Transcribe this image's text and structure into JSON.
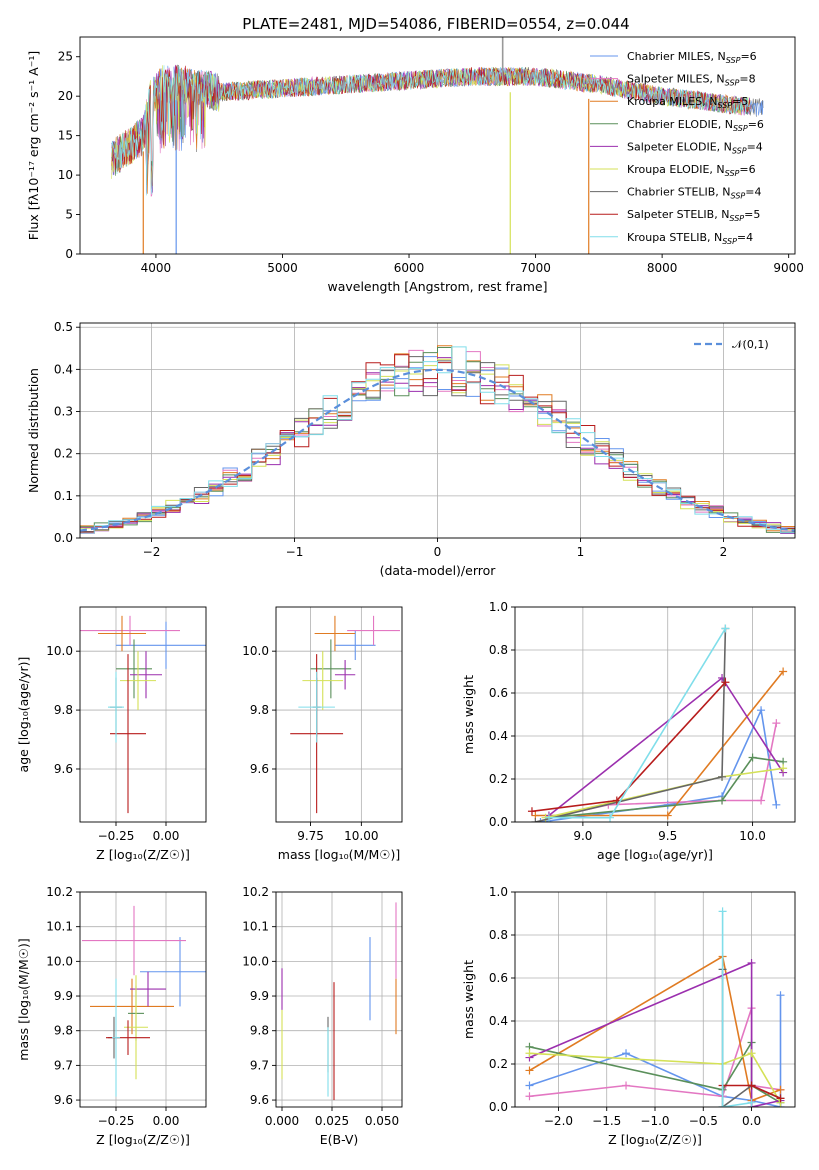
{
  "figure_title": "PLATE=2481, MJD=54086, FIBERID=0554, z=0.044",
  "model_names": [
    "Chabrier MILES",
    "Salpeter MILES",
    "Kroupa MILES",
    "Chabrier ELODIE",
    "Salpeter ELODIE",
    "Kroupa ELODIE",
    "Chabrier STELIB",
    "Salpeter STELIB",
    "Kroupa STELIB"
  ],
  "legend_nssp": [
    6,
    8,
    5,
    6,
    4,
    6,
    4,
    5,
    4
  ],
  "series_colors": [
    "#6495ed",
    "#e377c2",
    "#e07b22",
    "#5a8f5a",
    "#9b2fae",
    "#d4e157",
    "#666666",
    "#b71c1c",
    "#80deea"
  ],
  "chart_data": [
    {
      "id": "spectrum",
      "type": "line",
      "title": "",
      "xlabel": "wavelength [Angstrom, rest frame]",
      "ylabel": "Flux [fλ10⁻¹⁷ erg cm⁻² s⁻¹ A⁻¹]",
      "xlim": [
        3400,
        9050
      ],
      "ylim": [
        0,
        27.5
      ],
      "xticks": [
        4000,
        5000,
        6000,
        7000,
        8000,
        9000
      ],
      "yticks": [
        0,
        5,
        10,
        15,
        20,
        25
      ],
      "legend_position": "top-right",
      "continuum_x": [
        3650,
        3900,
        3950,
        4050,
        4200,
        4500,
        5000,
        5500,
        6000,
        6500,
        7000,
        7500,
        8000,
        8500,
        8800
      ],
      "continuum_y": [
        12,
        15,
        19.5,
        21.5,
        21.5,
        20.5,
        21,
        21.5,
        22,
        22.5,
        22.5,
        21.5,
        20,
        19,
        18.5
      ],
      "series_ranges": [
        [
          3650,
          8800
        ],
        [
          3650,
          8700
        ],
        [
          3650,
          8700
        ],
        [
          3650,
          8700
        ],
        [
          3650,
          8700
        ],
        [
          3650,
          8700
        ],
        [
          3650,
          8800
        ],
        [
          3650,
          8700
        ],
        [
          3650,
          8700
        ]
      ],
      "dips": [
        {
          "x": 3900,
          "y": 0,
          "series": "Kroupa MILES"
        },
        {
          "x": 4160,
          "y": 0,
          "series": "Chabrier MILES"
        },
        {
          "x": 6800,
          "y": 0,
          "series": "Kroupa ELODIE"
        },
        {
          "x": 7420,
          "y": 0,
          "series": "Kroupa MILES"
        }
      ],
      "spikes": [
        {
          "x": 6740,
          "y": 27.5
        }
      ]
    },
    {
      "id": "residual_hist",
      "type": "line",
      "title": "",
      "xlabel": "(data-model)/error",
      "ylabel": "Normed distribution",
      "xlim": [
        -2.5,
        2.5
      ],
      "ylim": [
        0,
        0.51
      ],
      "xticks": [
        -2,
        -1,
        0,
        1,
        2
      ],
      "yticks": [
        0.0,
        0.1,
        0.2,
        0.3,
        0.4,
        0.5
      ],
      "bin_width": 0.1,
      "legend": [
        "𝒩(0,1)"
      ],
      "legend_position": "top-right",
      "reference_curve": "normal(0,1)"
    },
    {
      "id": "age_vs_Z",
      "type": "scatter",
      "title": "",
      "xlabel": "Z [log₁₀(Z/Z☉)]",
      "ylabel": "age  [log₁₀(age/yr)]",
      "xlim": [
        -0.43,
        0.2
      ],
      "ylim": [
        9.42,
        10.15
      ],
      "xticks": [
        -0.25,
        0.0
      ],
      "yticks": [
        9.6,
        9.8,
        10.0
      ],
      "points": [
        {
          "series": "Chabrier MILES",
          "x": 0.0,
          "y": 10.02,
          "xerr": 0.25,
          "yerr": 0.08
        },
        {
          "series": "Salpeter MILES",
          "x": -0.18,
          "y": 10.07,
          "xerr": 0.25,
          "yerr": 0.05
        },
        {
          "series": "Kroupa MILES",
          "x": -0.22,
          "y": 10.06,
          "xerr": 0.12,
          "yerr": 0.06
        },
        {
          "series": "Chabrier ELODIE",
          "x": -0.16,
          "y": 9.94,
          "xerr": 0.09,
          "yerr": 0.1
        },
        {
          "series": "Salpeter ELODIE",
          "x": -0.1,
          "y": 9.92,
          "xerr": 0.08,
          "yerr": 0.08
        },
        {
          "series": "Kroupa ELODIE",
          "x": -0.14,
          "y": 9.9,
          "xerr": 0.09,
          "yerr": 0.1
        },
        {
          "series": "Chabrier STELIB",
          "x": -0.25,
          "y": 9.81,
          "xerr": 0.03,
          "yerr": 0.1
        },
        {
          "series": "Salpeter STELIB",
          "x": -0.19,
          "y": 9.72,
          "xerr": 0.09,
          "yerr": 0.27
        },
        {
          "series": "Kroupa STELIB",
          "x": -0.25,
          "y": 9.81,
          "xerr": 0.04,
          "yerr": 0.12
        }
      ]
    },
    {
      "id": "age_vs_mass",
      "type": "scatter",
      "title": "",
      "xlabel": "mass [log₁₀(M/M☉)]",
      "ylabel": "",
      "xlim": [
        9.58,
        10.2
      ],
      "ylim": [
        9.42,
        10.15
      ],
      "xticks": [
        9.75,
        10.0
      ],
      "yticks": [
        9.6,
        9.8,
        10.0
      ],
      "points": [
        {
          "series": "Chabrier MILES",
          "x": 9.97,
          "y": 10.02,
          "xerr": 0.1,
          "yerr": 0.05
        },
        {
          "series": "Salpeter MILES",
          "x": 10.06,
          "y": 10.07,
          "xerr": 0.13,
          "yerr": 0.05
        },
        {
          "series": "Kroupa MILES",
          "x": 9.87,
          "y": 10.06,
          "xerr": 0.1,
          "yerr": 0.06
        },
        {
          "series": "Chabrier ELODIE",
          "x": 9.85,
          "y": 9.94,
          "xerr": 0.1,
          "yerr": 0.1
        },
        {
          "series": "Salpeter ELODIE",
          "x": 9.92,
          "y": 9.92,
          "xerr": 0.05,
          "yerr": 0.05
        },
        {
          "series": "Kroupa ELODIE",
          "x": 9.81,
          "y": 9.9,
          "xerr": 0.1,
          "yerr": 0.1
        },
        {
          "series": "Chabrier STELIB",
          "x": 9.78,
          "y": 9.81,
          "xerr": 0.02,
          "yerr": 0.1
        },
        {
          "series": "Salpeter STELIB",
          "x": 9.78,
          "y": 9.72,
          "xerr": 0.13,
          "yerr": 0.27
        },
        {
          "series": "Kroupa STELIB",
          "x": 9.78,
          "y": 9.81,
          "xerr": 0.09,
          "yerr": 0.12
        }
      ]
    },
    {
      "id": "mass_weight_vs_age",
      "type": "line",
      "title": "",
      "xlabel": "age  [log₁₀(age/yr)]",
      "ylabel": "mass weight",
      "xlim": [
        8.6,
        10.25
      ],
      "ylim": [
        0.0,
        1.0
      ],
      "xticks": [
        9.0,
        9.5,
        10.0
      ],
      "yticks": [
        0.0,
        0.2,
        0.4,
        0.6,
        0.8,
        1.0
      ],
      "series": [
        {
          "name": "Chabrier MILES",
          "x": [
            8.75,
            9.5,
            9.82,
            10.05,
            10.14
          ],
          "y": [
            0.0,
            0.08,
            0.12,
            0.52,
            0.08
          ]
        },
        {
          "name": "Salpeter MILES",
          "x": [
            8.8,
            9.15,
            9.82,
            10.05,
            10.14
          ],
          "y": [
            0.02,
            0.08,
            0.1,
            0.1,
            0.46
          ]
        },
        {
          "name": "Kroupa MILES",
          "x": [
            8.72,
            9.5,
            10.18
          ],
          "y": [
            0.03,
            0.03,
            0.7
          ]
        },
        {
          "name": "Chabrier ELODIE",
          "x": [
            8.8,
            9.82,
            10.0,
            10.18
          ],
          "y": [
            0.02,
            0.1,
            0.3,
            0.28
          ]
        },
        {
          "name": "Salpeter ELODIE",
          "x": [
            8.8,
            9.82,
            10.18
          ],
          "y": [
            0.03,
            0.67,
            0.23
          ]
        },
        {
          "name": "Kroupa ELODIE",
          "x": [
            8.78,
            9.82,
            10.18
          ],
          "y": [
            0.02,
            0.21,
            0.25
          ]
        },
        {
          "name": "Chabrier STELIB",
          "x": [
            8.72,
            9.82,
            9.84
          ],
          "y": [
            0.0,
            0.21,
            0.9
          ]
        },
        {
          "name": "Salpeter STELIB",
          "x": [
            8.7,
            9.2,
            9.84
          ],
          "y": [
            0.05,
            0.1,
            0.65
          ]
        },
        {
          "name": "Kroupa STELIB",
          "x": [
            8.8,
            9.16,
            9.84
          ],
          "y": [
            0.02,
            0.02,
            0.9
          ]
        }
      ]
    },
    {
      "id": "mass_vs_Z",
      "type": "scatter",
      "title": "",
      "xlabel": "Z [log₁₀(Z/Z☉)]",
      "ylabel": "mass [log₁₀(M/M☉)]",
      "xlim": [
        -0.43,
        0.2
      ],
      "ylim": [
        9.58,
        10.2
      ],
      "xticks": [
        -0.25,
        0.0
      ],
      "yticks": [
        9.6,
        9.7,
        9.8,
        9.9,
        10.0,
        10.1,
        10.2
      ],
      "points": [
        {
          "series": "Chabrier MILES",
          "x": 0.07,
          "y": 9.97,
          "xerr": 0.2,
          "yerr": 0.1
        },
        {
          "series": "Salpeter MILES",
          "x": -0.16,
          "y": 10.06,
          "xerr": 0.26,
          "yerr": 0.1
        },
        {
          "series": "Kroupa MILES",
          "x": -0.17,
          "y": 9.87,
          "xerr": 0.21,
          "yerr": 0.08
        },
        {
          "series": "Chabrier ELODIE",
          "x": -0.15,
          "y": 9.85,
          "xerr": 0.04,
          "yerr": 0.08
        },
        {
          "series": "Salpeter ELODIE",
          "x": -0.09,
          "y": 9.92,
          "xerr": 0.09,
          "yerr": 0.05
        },
        {
          "series": "Kroupa ELODIE",
          "x": -0.15,
          "y": 9.81,
          "xerr": 0.06,
          "yerr": 0.15
        },
        {
          "series": "Chabrier STELIB",
          "x": -0.26,
          "y": 9.78,
          "xerr": 0.03,
          "yerr": 0.06
        },
        {
          "series": "Salpeter STELIB",
          "x": -0.19,
          "y": 9.78,
          "xerr": 0.11,
          "yerr": 0.05
        },
        {
          "series": "Kroupa STELIB",
          "x": -0.25,
          "y": 9.78,
          "xerr": 0.02,
          "yerr": 0.17
        }
      ]
    },
    {
      "id": "mass_vs_ebv",
      "type": "scatter",
      "title": "",
      "xlabel": "E(B-V)",
      "ylabel": "",
      "xlim": [
        -0.003,
        0.06
      ],
      "ylim": [
        9.58,
        10.2
      ],
      "xticks": [
        0.0,
        0.025,
        0.05
      ],
      "yticks": [
        9.6,
        9.7,
        9.8,
        9.9,
        10.0,
        10.1,
        10.2
      ],
      "points": [
        {
          "series": "Chabrier MILES",
          "x": 0.044,
          "y": 9.95,
          "yerr": 0.12
        },
        {
          "series": "Salpeter MILES",
          "x": 0.057,
          "y": 10.06,
          "yerr": 0.11
        },
        {
          "series": "Kroupa MILES",
          "x": 0.057,
          "y": 9.87,
          "yerr": 0.08
        },
        {
          "series": "Salpeter ELODIE",
          "x": 0.0,
          "y": 9.92,
          "yerr": 0.06
        },
        {
          "series": "Kroupa ELODIE",
          "x": 0.0,
          "y": 9.76,
          "yerr": 0.1
        },
        {
          "series": "Chabrier STELIB",
          "x": 0.023,
          "y": 9.76,
          "yerr": 0.08
        },
        {
          "series": "Salpeter STELIB",
          "x": 0.026,
          "y": 9.77,
          "yerr": 0.17
        },
        {
          "series": "Kroupa STELIB",
          "x": 0.023,
          "y": 9.71,
          "yerr": 0.1
        }
      ]
    },
    {
      "id": "mass_weight_vs_Z",
      "type": "line",
      "title": "",
      "xlabel": "Z [log₁₀(Z/Z☉)]",
      "ylabel": "mass weight",
      "xlim": [
        -2.45,
        0.45
      ],
      "ylim": [
        0.0,
        1.0
      ],
      "xticks": [
        -2.0,
        -1.5,
        -1.0,
        -0.5,
        0.0
      ],
      "yticks": [
        0.0,
        0.2,
        0.4,
        0.6,
        0.8,
        1.0
      ],
      "series": [
        {
          "name": "Chabrier MILES",
          "x": [
            -2.3,
            -1.3,
            -0.3,
            0.0,
            0.3,
            0.3
          ],
          "y": [
            0.1,
            0.25,
            0.05,
            0.03,
            0.0,
            0.52
          ]
        },
        {
          "name": "Salpeter MILES",
          "x": [
            -2.3,
            -1.3,
            -0.3,
            0.0,
            0.0,
            0.3
          ],
          "y": [
            0.05,
            0.1,
            0.05,
            0.46,
            0.1,
            0.08
          ]
        },
        {
          "name": "Kroupa MILES",
          "x": [
            -2.3,
            -0.3,
            0.0,
            0.3
          ],
          "y": [
            0.17,
            0.7,
            0.03,
            0.08
          ]
        },
        {
          "name": "Chabrier ELODIE",
          "x": [
            -2.3,
            -0.3,
            0.0,
            0.0,
            0.3
          ],
          "y": [
            0.28,
            0.08,
            0.3,
            0.1,
            0.02
          ]
        },
        {
          "name": "Salpeter ELODIE",
          "x": [
            -2.3,
            0.0,
            0.0,
            0.3
          ],
          "y": [
            0.23,
            0.67,
            0.0,
            0.03
          ]
        },
        {
          "name": "Kroupa ELODIE",
          "x": [
            -2.3,
            -0.3,
            0.0,
            0.3
          ],
          "y": [
            0.25,
            0.2,
            0.25,
            0.02
          ]
        },
        {
          "name": "Chabrier STELIB",
          "x": [
            -0.3,
            -0.3,
            0.0,
            0.3
          ],
          "y": [
            0.64,
            0.0,
            0.1,
            0.04
          ]
        },
        {
          "name": "Salpeter STELIB",
          "x": [
            -0.3,
            0.0,
            0.3
          ],
          "y": [
            0.1,
            0.1,
            0.04
          ]
        },
        {
          "name": "Kroupa STELIB",
          "x": [
            -0.3,
            -0.3,
            0.0
          ],
          "y": [
            0.91,
            0.0,
            0.02
          ]
        }
      ]
    }
  ]
}
